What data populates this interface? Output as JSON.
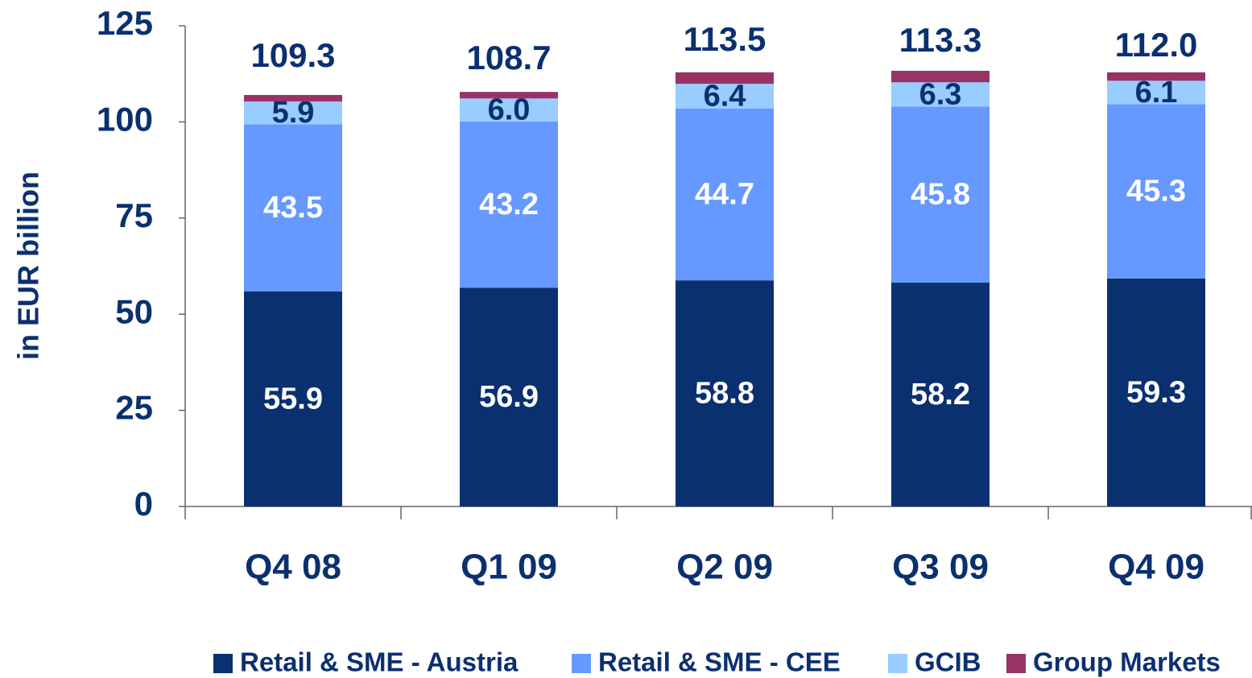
{
  "chart_data": {
    "type": "stacked_bar",
    "y_label": "in EUR billion",
    "categories": [
      "Q4 08",
      "Q1 09",
      "Q2 09",
      "Q3 09",
      "Q4 09"
    ],
    "series": [
      {
        "name": "Retail & SME - Austria",
        "color": "#0b3070",
        "label_color": "#ffffff",
        "values": [
          55.9,
          56.9,
          58.8,
          58.2,
          59.3
        ],
        "value_labels": [
          "55.9",
          "56.9",
          "58.8",
          "58.2",
          "59.3"
        ]
      },
      {
        "name": "Retail & SME - CEE",
        "color": "#6699ff",
        "label_color": "#ffffff",
        "values": [
          43.5,
          43.2,
          44.7,
          45.8,
          45.3
        ],
        "value_labels": [
          "43.5",
          "43.2",
          "44.7",
          "45.8",
          "45.3"
        ]
      },
      {
        "name": "GCIB",
        "color": "#99ccff",
        "label_color": "#0b3070",
        "values": [
          5.9,
          6.0,
          6.4,
          6.3,
          6.1
        ],
        "value_labels": [
          "5.9",
          "6.0",
          "6.4",
          "6.3",
          "6.1"
        ]
      },
      {
        "name": "Group Markets",
        "color": "#993366",
        "values": [
          1.7,
          1.7,
          3.0,
          3.0,
          2.2
        ]
      }
    ],
    "totals": {
      "values": [
        109.3,
        108.7,
        113.5,
        113.3,
        112.0
      ],
      "value_labels": [
        "109.3",
        "108.7",
        "113.5",
        "113.3",
        "112.0"
      ]
    },
    "ylim": [
      0,
      125
    ],
    "yticks": [
      0,
      25,
      50,
      75,
      100,
      125
    ],
    "legend": "bottom"
  }
}
